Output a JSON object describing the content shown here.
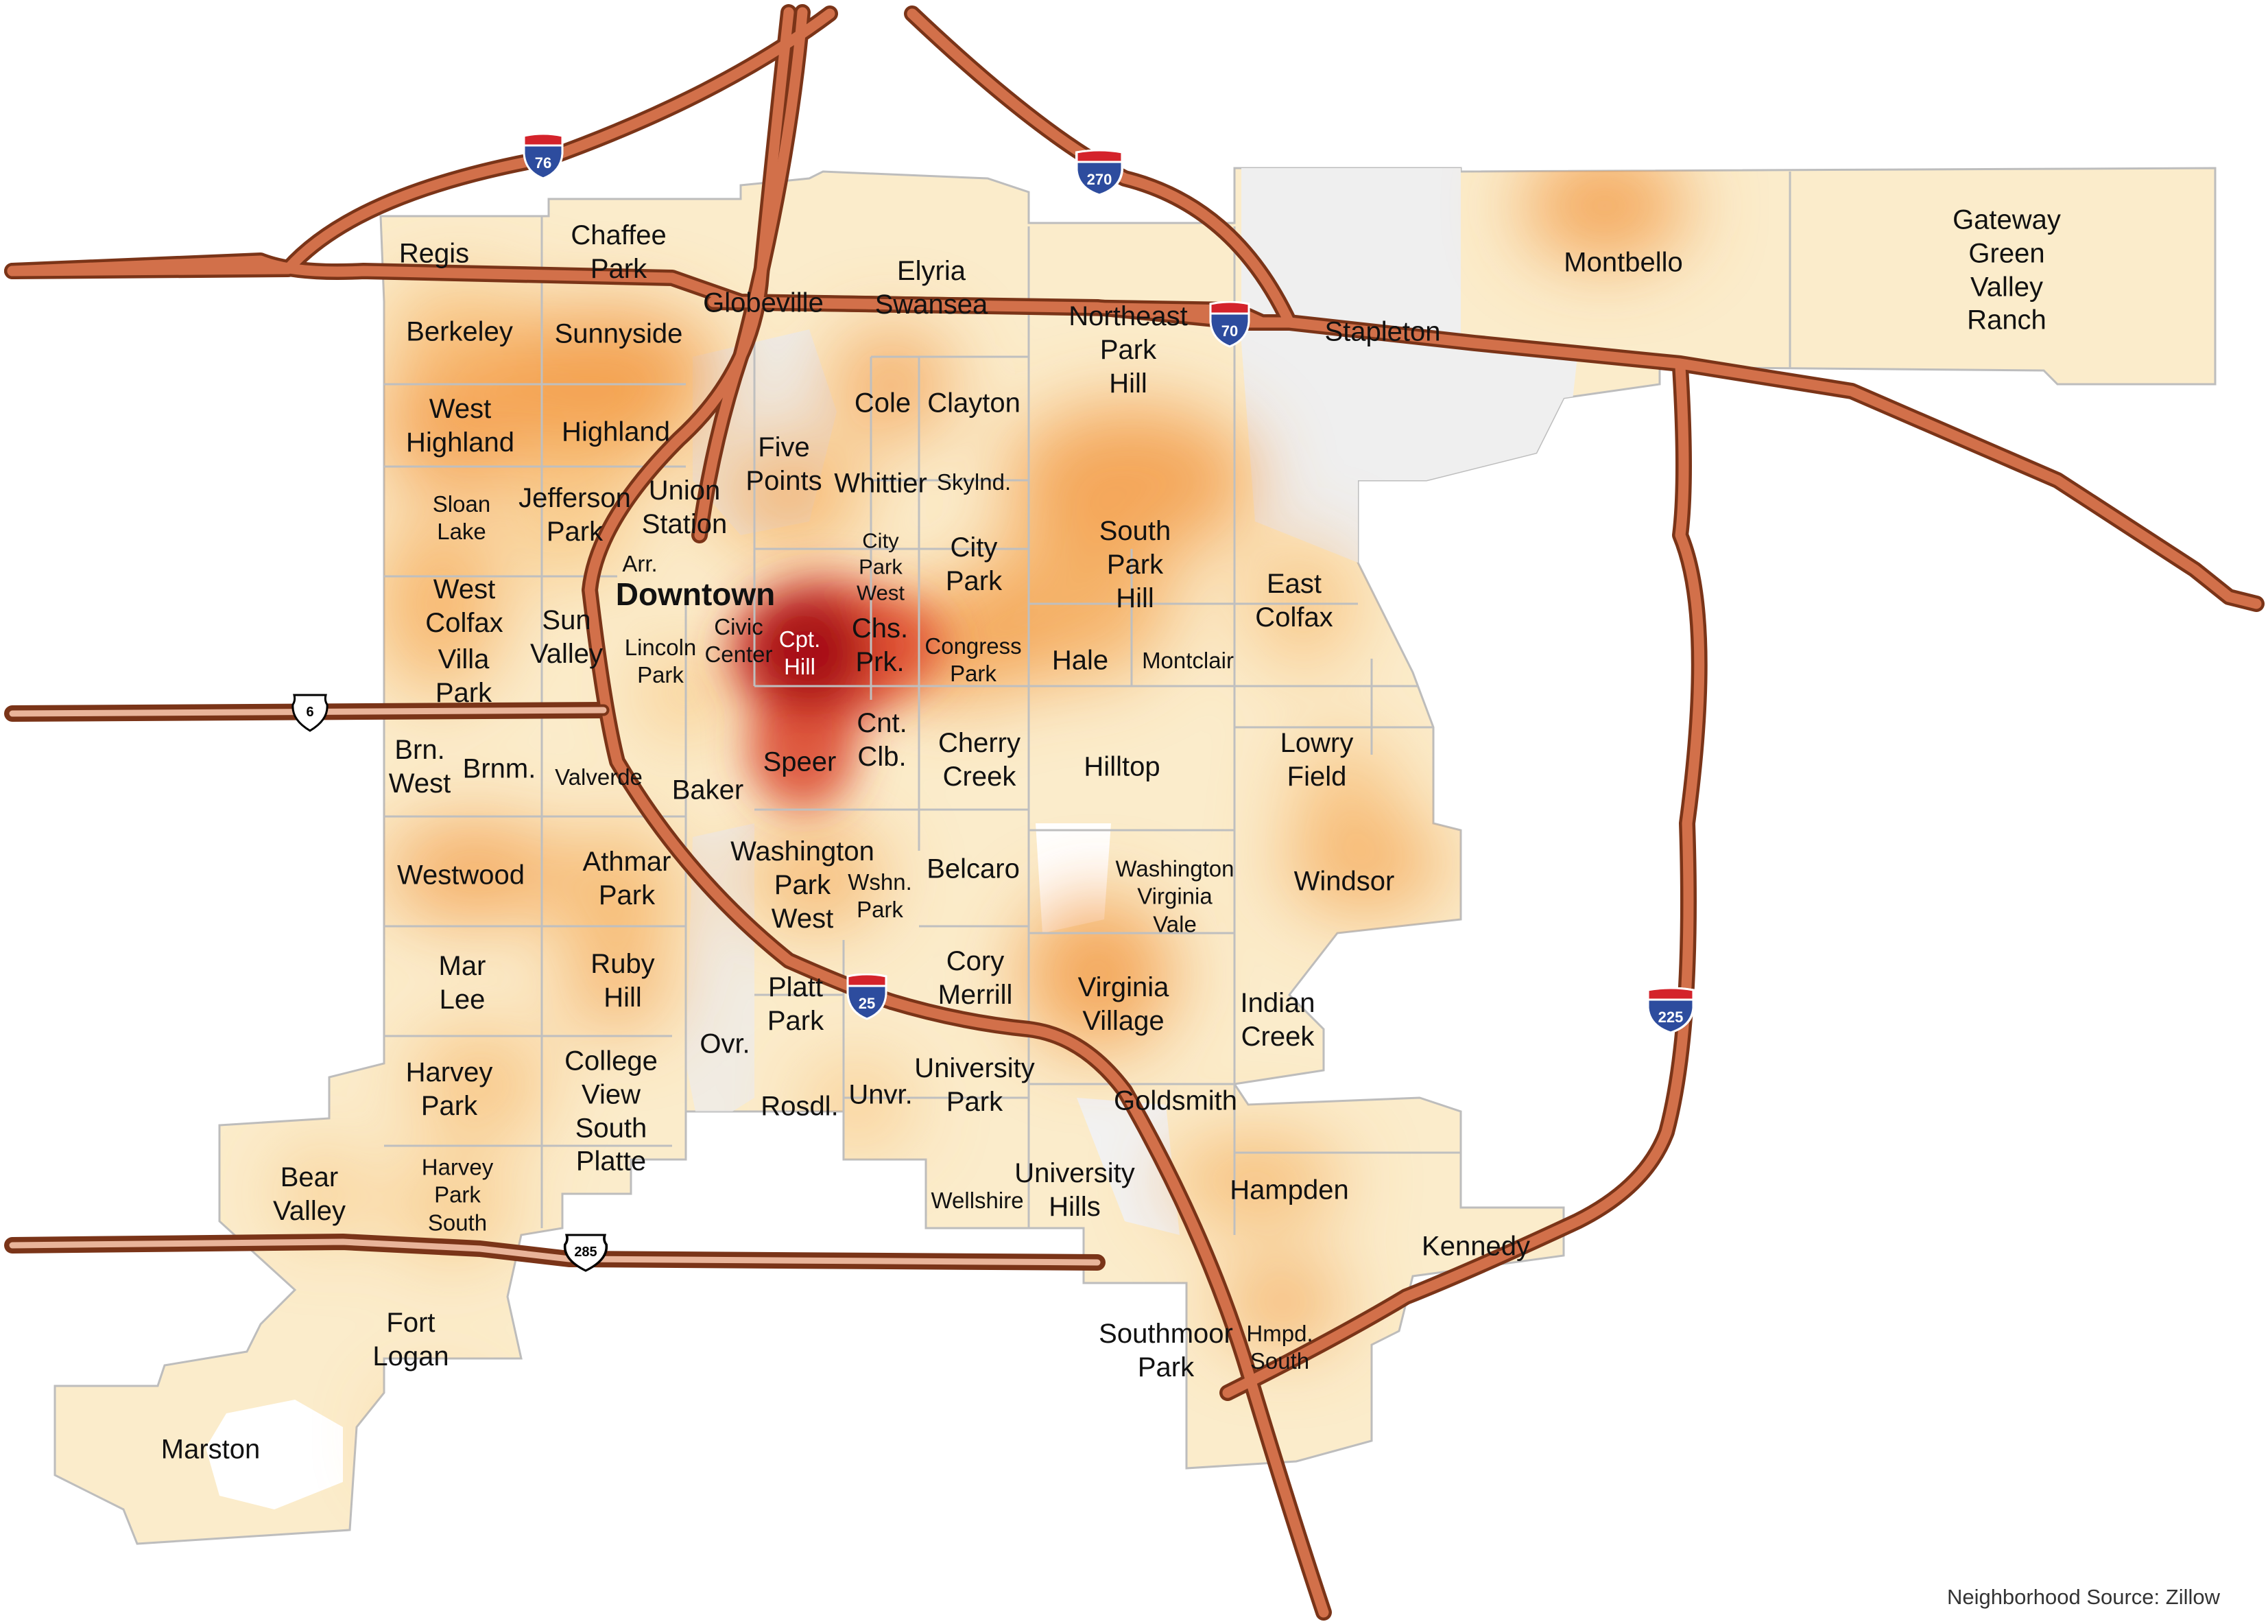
{
  "map": {
    "source_note": "Neighborhood Source: Zillow",
    "heat_colors": {
      "low": "#fbecc7",
      "mid": "#f5a34a",
      "high": "#c01a1a",
      "unmapped": "#efefef"
    },
    "road_color": "#c8613a",
    "neighborhoods": [
      {
        "name": "Regis",
        "lines": [
          "Regis"
        ],
        "size": "normal"
      },
      {
        "name": "Chaffee Park",
        "lines": [
          "Chaffee",
          "Park"
        ],
        "size": "normal"
      },
      {
        "name": "Elyria Swansea",
        "lines": [
          "Elyria",
          "Swansea"
        ],
        "size": "normal"
      },
      {
        "name": "Montbello",
        "lines": [
          "Montbello"
        ],
        "size": "normal"
      },
      {
        "name": "Gateway Green Valley Ranch",
        "lines": [
          "Gateway",
          "Green",
          "Valley",
          "Ranch"
        ],
        "size": "normal"
      },
      {
        "name": "Globeville",
        "lines": [
          "Globeville"
        ],
        "size": "normal"
      },
      {
        "name": "Northeast Park Hill",
        "lines": [
          "Northeast",
          "Park",
          "Hill"
        ],
        "size": "normal"
      },
      {
        "name": "Stapleton",
        "lines": [
          "Stapleton"
        ],
        "size": "normal"
      },
      {
        "name": "Berkeley",
        "lines": [
          "Berkeley"
        ],
        "size": "normal"
      },
      {
        "name": "Sunnyside",
        "lines": [
          "Sunnyside"
        ],
        "size": "normal"
      },
      {
        "name": "West Highland",
        "lines": [
          "West",
          "Highland"
        ],
        "size": "normal"
      },
      {
        "name": "Highland",
        "lines": [
          "Highland"
        ],
        "size": "normal"
      },
      {
        "name": "Cole",
        "lines": [
          "Cole"
        ],
        "size": "normal"
      },
      {
        "name": "Clayton",
        "lines": [
          "Clayton"
        ],
        "size": "normal"
      },
      {
        "name": "Five Points",
        "lines": [
          "Five",
          "Points"
        ],
        "size": "normal"
      },
      {
        "name": "Whittier",
        "lines": [
          "Whittier"
        ],
        "size": "normal"
      },
      {
        "name": "Skylnd.",
        "lines": [
          "Skylnd."
        ],
        "size": "small"
      },
      {
        "name": "Sloan Lake",
        "lines": [
          "Sloan",
          "Lake"
        ],
        "size": "small"
      },
      {
        "name": "Jefferson Park",
        "lines": [
          "Jefferson",
          "Park"
        ],
        "size": "normal"
      },
      {
        "name": "Union Station",
        "lines": [
          "Union",
          "Station"
        ],
        "size": "normal"
      },
      {
        "name": "Arr.",
        "lines": [
          "Arr."
        ],
        "size": "small"
      },
      {
        "name": "City Park West",
        "lines": [
          "City",
          "Park",
          "West"
        ],
        "size": "xs"
      },
      {
        "name": "City Park",
        "lines": [
          "City",
          "Park"
        ],
        "size": "normal"
      },
      {
        "name": "South Park Hill",
        "lines": [
          "South",
          "Park",
          "Hill"
        ],
        "size": "normal"
      },
      {
        "name": "West Colfax",
        "lines": [
          "West",
          "Colfax"
        ],
        "size": "normal"
      },
      {
        "name": "Downtown",
        "lines": [
          "Downtown"
        ],
        "size": "big"
      },
      {
        "name": "East Colfax",
        "lines": [
          "East",
          "Colfax"
        ],
        "size": "normal"
      },
      {
        "name": "Sun Valley",
        "lines": [
          "Sun",
          "Valley"
        ],
        "size": "normal"
      },
      {
        "name": "Lincoln Park",
        "lines": [
          "Lincoln",
          "Park"
        ],
        "size": "small"
      },
      {
        "name": "Civic Center",
        "lines": [
          "Civic",
          "Center"
        ],
        "size": "small"
      },
      {
        "name": "Cpt. Hill",
        "lines": [
          "Cpt.",
          "Hill"
        ],
        "size": "small"
      },
      {
        "name": "Chs. Prk.",
        "lines": [
          "Chs.",
          "Prk."
        ],
        "size": "normal"
      },
      {
        "name": "Congress Park",
        "lines": [
          "Congress",
          "Park"
        ],
        "size": "small"
      },
      {
        "name": "Hale",
        "lines": [
          "Hale"
        ],
        "size": "normal"
      },
      {
        "name": "Montclair",
        "lines": [
          "Montclair"
        ],
        "size": "small"
      },
      {
        "name": "Villa Park",
        "lines": [
          "Villa",
          "Park"
        ],
        "size": "normal"
      },
      {
        "name": "Brn. West",
        "lines": [
          "Brn.",
          "West"
        ],
        "size": "normal"
      },
      {
        "name": "Brnm.",
        "lines": [
          "Brnm."
        ],
        "size": "normal"
      },
      {
        "name": "Valverde",
        "lines": [
          "Valverde"
        ],
        "size": "small"
      },
      {
        "name": "Baker",
        "lines": [
          "Baker"
        ],
        "size": "normal"
      },
      {
        "name": "Speer",
        "lines": [
          "Speer"
        ],
        "size": "normal"
      },
      {
        "name": "Cnt. Clb.",
        "lines": [
          "Cnt.",
          "Clb."
        ],
        "size": "normal"
      },
      {
        "name": "Cherry Creek",
        "lines": [
          "Cherry",
          "Creek"
        ],
        "size": "normal"
      },
      {
        "name": "Hilltop",
        "lines": [
          "Hilltop"
        ],
        "size": "normal"
      },
      {
        "name": "Lowry Field",
        "lines": [
          "Lowry",
          "Field"
        ],
        "size": "normal"
      },
      {
        "name": "Westwood",
        "lines": [
          "Westwood"
        ],
        "size": "normal"
      },
      {
        "name": "Athmar Park",
        "lines": [
          "Athmar",
          "Park"
        ],
        "size": "normal"
      },
      {
        "name": "Washington Park West",
        "lines": [
          "Washington",
          "Park",
          "West"
        ],
        "size": "normal"
      },
      {
        "name": "Wshn. Park",
        "lines": [
          "Wshn.",
          "Park"
        ],
        "size": "small"
      },
      {
        "name": "Belcaro",
        "lines": [
          "Belcaro"
        ],
        "size": "normal"
      },
      {
        "name": "Washington Virginia Vale",
        "lines": [
          "Washington",
          "Virginia",
          "Vale"
        ],
        "size": "small"
      },
      {
        "name": "Windsor",
        "lines": [
          "Windsor"
        ],
        "size": "normal"
      },
      {
        "name": "Mar Lee",
        "lines": [
          "Mar",
          "Lee"
        ],
        "size": "normal"
      },
      {
        "name": "Ruby Hill",
        "lines": [
          "Ruby",
          "Hill"
        ],
        "size": "normal"
      },
      {
        "name": "Platt Park",
        "lines": [
          "Platt",
          "Park"
        ],
        "size": "normal"
      },
      {
        "name": "Cory Merrill",
        "lines": [
          "Cory",
          "Merrill"
        ],
        "size": "normal"
      },
      {
        "name": "Virginia Village",
        "lines": [
          "Virginia",
          "Village"
        ],
        "size": "normal"
      },
      {
        "name": "Indian Creek",
        "lines": [
          "Indian",
          "Creek"
        ],
        "size": "normal"
      },
      {
        "name": "Harvey Park",
        "lines": [
          "Harvey",
          "Park"
        ],
        "size": "normal"
      },
      {
        "name": "College View South Platte",
        "lines": [
          "College",
          "View",
          "South",
          "Platte"
        ],
        "size": "normal"
      },
      {
        "name": "Ovr.",
        "lines": [
          "Ovr."
        ],
        "size": "normal"
      },
      {
        "name": "Rosdl.",
        "lines": [
          "Rosdl."
        ],
        "size": "normal"
      },
      {
        "name": "Unvr.",
        "lines": [
          "Unvr."
        ],
        "size": "normal"
      },
      {
        "name": "University Park",
        "lines": [
          "University",
          "Park"
        ],
        "size": "normal"
      },
      {
        "name": "Goldsmith",
        "lines": [
          "Goldsmith"
        ],
        "size": "normal"
      },
      {
        "name": "Bear Valley",
        "lines": [
          "Bear",
          "Valley"
        ],
        "size": "normal"
      },
      {
        "name": "Harvey Park South",
        "lines": [
          "Harvey",
          "Park",
          "South"
        ],
        "size": "small"
      },
      {
        "name": "University Hills",
        "lines": [
          "University",
          "Hills"
        ],
        "size": "normal"
      },
      {
        "name": "Wellshire",
        "lines": [
          "Wellshire"
        ],
        "size": "small"
      },
      {
        "name": "Hampden",
        "lines": [
          "Hampden"
        ],
        "size": "normal"
      },
      {
        "name": "Kennedy",
        "lines": [
          "Kennedy"
        ],
        "size": "normal"
      },
      {
        "name": "Fort Logan",
        "lines": [
          "Fort",
          "Logan"
        ],
        "size": "normal"
      },
      {
        "name": "Southmoor Park",
        "lines": [
          "Southmoor",
          "Park"
        ],
        "size": "normal"
      },
      {
        "name": "Hmpd. South",
        "lines": [
          "Hmpd.",
          "South"
        ],
        "size": "small"
      },
      {
        "name": "Marston",
        "lines": [
          "Marston"
        ],
        "size": "normal"
      }
    ],
    "shields": [
      {
        "type": "interstate",
        "number": "76"
      },
      {
        "type": "interstate",
        "number": "270"
      },
      {
        "type": "interstate",
        "number": "70"
      },
      {
        "type": "interstate",
        "number": "25"
      },
      {
        "type": "interstate",
        "number": "225"
      },
      {
        "type": "us",
        "number": "6"
      },
      {
        "type": "us",
        "number": "285"
      }
    ]
  }
}
